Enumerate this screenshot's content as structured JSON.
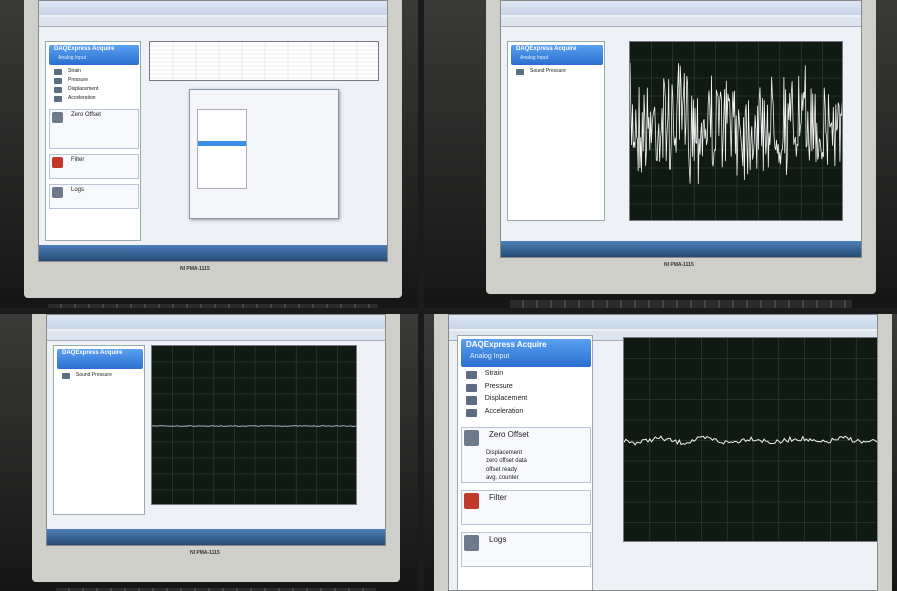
{
  "panels": [
    {
      "brand": "NI PMA-1115",
      "sidebar_title": "DAQExpress Acquire",
      "sidebar_subtitle": "Analog Input",
      "channels": [
        "Strain",
        "Pressure",
        "Displacement",
        "Acceleration"
      ],
      "sections": [
        "Zero Offset",
        "Filter",
        "Logs"
      ]
    },
    {
      "brand": "NI PMA-1115",
      "sidebar_title": "DAQExpress Acquire",
      "sidebar_subtitle": "Analog Input",
      "channels": [
        "Sound Pressure"
      ]
    },
    {
      "brand": "NI PMA-1115",
      "sidebar_title": "DAQExpress Acquire",
      "channels": [
        "Sound Pressure"
      ]
    },
    {
      "sidebar_title": "DAQExpress Acquire",
      "sidebar_subtitle": "Analog Input",
      "channels": [
        "Strain",
        "Pressure",
        "Displacement",
        "Acceleration"
      ],
      "sections": [
        "Zero Offset",
        "Filter",
        "Logs"
      ],
      "items": [
        "Displacement",
        "zero offset data",
        "offset ready",
        "avg. counter"
      ]
    }
  ]
}
